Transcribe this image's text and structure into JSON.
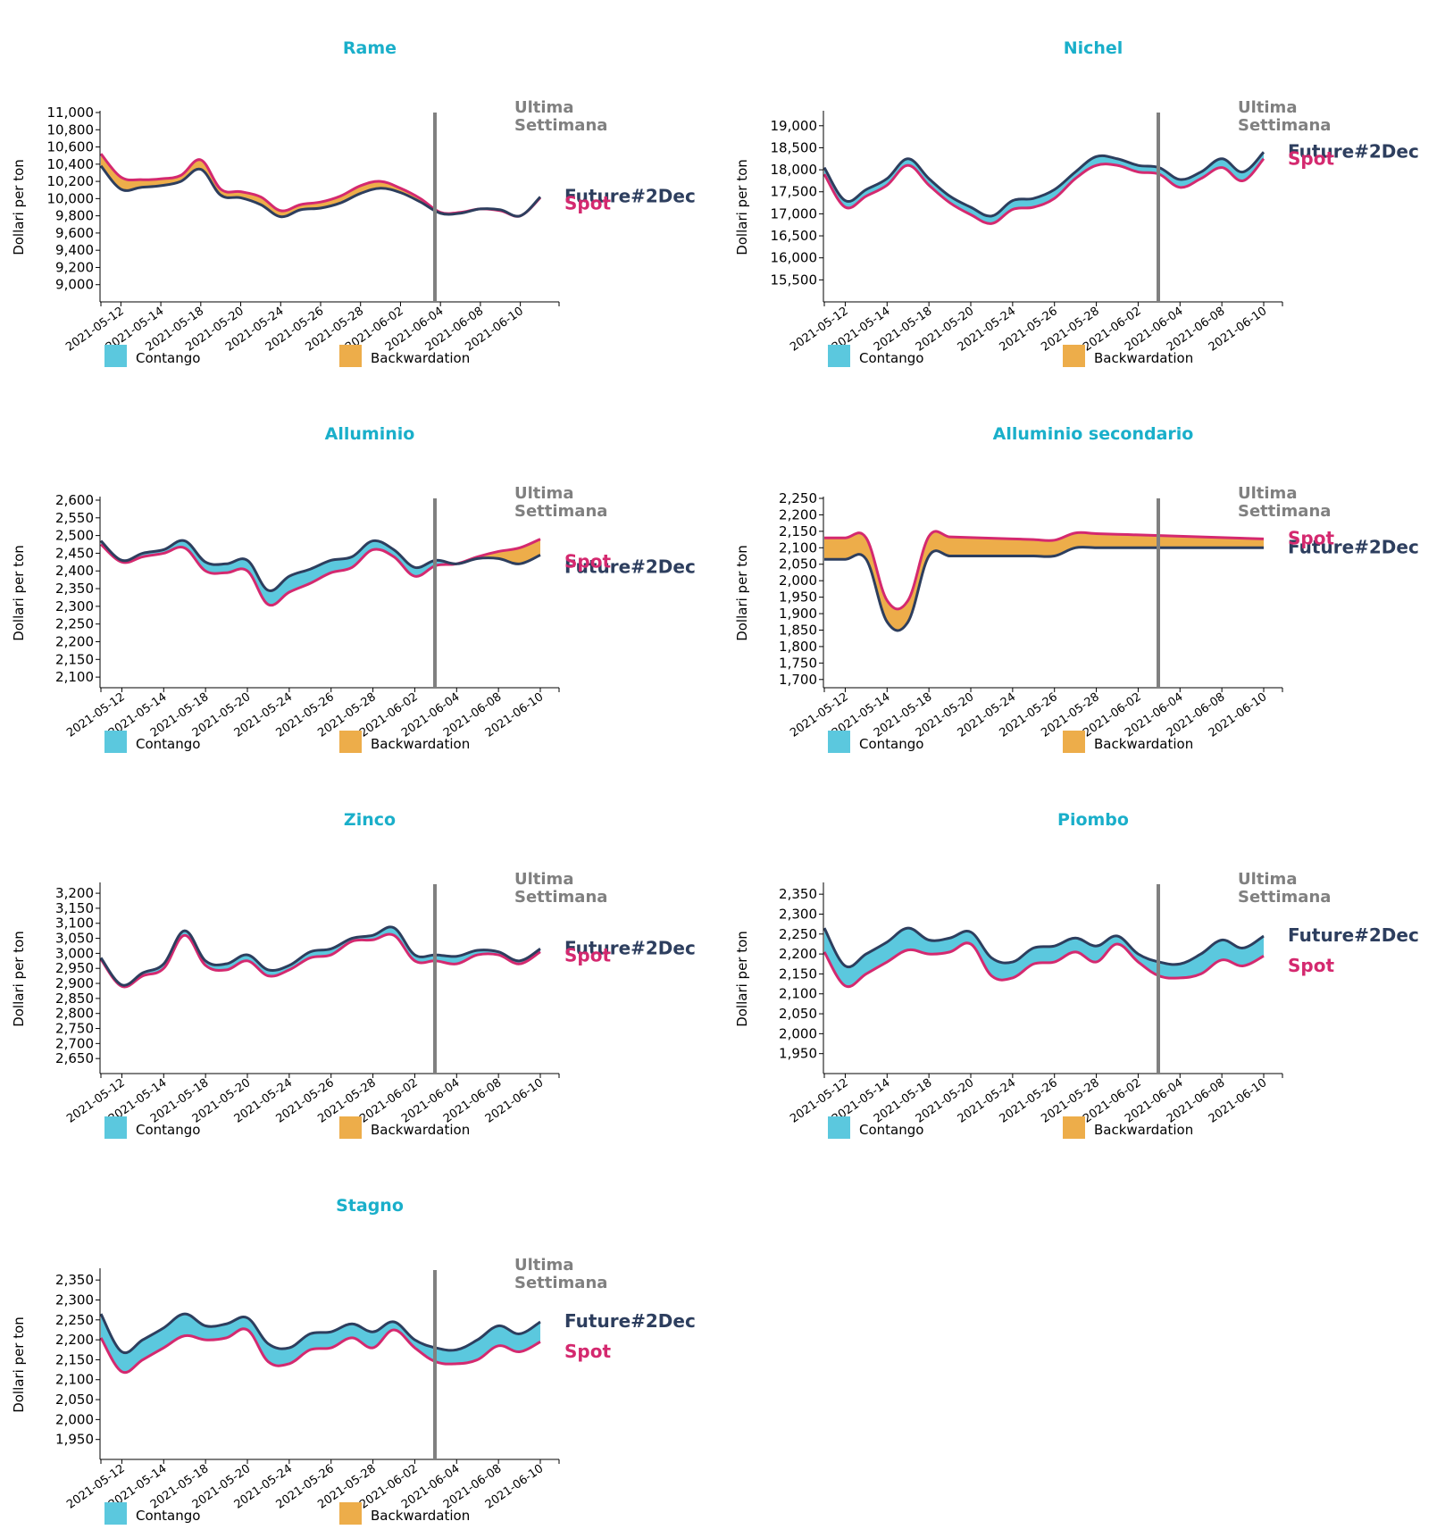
{
  "legend": {
    "contango": "Contango",
    "backwardation": "Backwardation"
  },
  "colors": {
    "title": "#1aafca",
    "future": "#2d3e5e",
    "spot": "#d4296f",
    "contango": "#5bc8de",
    "backwardation": "#edad4a",
    "week_line": "#808080",
    "week_label": "#808080",
    "axis": "#000000"
  },
  "chart_data": [
    {
      "type": "area",
      "title": "Rame",
      "ylabel": "Dollari per ton",
      "ylim": [
        8800,
        11000
      ],
      "yticks": [
        9000,
        9200,
        9400,
        9600,
        9800,
        10000,
        10200,
        10400,
        10600,
        10800,
        11000
      ],
      "x_tick_labels": [
        "2021-05-12",
        "2021-05-14",
        "2021-05-18",
        "2021-05-20",
        "2021-05-24",
        "2021-05-26",
        "2021-05-28",
        "2021-06-02",
        "2021-06-04",
        "2021-06-08",
        "2021-06-10"
      ],
      "week_marker_index": 16,
      "week_label": [
        "Ultima",
        "Settimana"
      ],
      "series": [
        {
          "name": "Future#2Dec",
          "values": [
            10380,
            10110,
            10130,
            10150,
            10200,
            10340,
            10040,
            10010,
            9930,
            9790,
            9870,
            9890,
            9950,
            10060,
            10120,
            10070,
            9960,
            9830,
            9830,
            9880,
            9870,
            9800,
            10020
          ]
        },
        {
          "name": "Spot",
          "values": [
            10520,
            10250,
            10220,
            10230,
            10270,
            10450,
            10110,
            10080,
            10020,
            9860,
            9930,
            9960,
            10030,
            10150,
            10200,
            10120,
            10000,
            9840,
            9840,
            9880,
            9860,
            9800,
            10010
          ]
        }
      ],
      "end_labels": [
        "Future#2Dec",
        "Spot"
      ]
    },
    {
      "type": "area",
      "title": "Nichel",
      "ylabel": "Dollari per ton",
      "ylim": [
        15000,
        19300
      ],
      "yticks": [
        15500,
        16000,
        16500,
        17000,
        17500,
        18000,
        18500,
        19000
      ],
      "x_tick_labels": [
        "2021-05-12",
        "2021-05-14",
        "2021-05-18",
        "2021-05-20",
        "2021-05-24",
        "2021-05-26",
        "2021-05-28",
        "2021-06-02",
        "2021-06-04",
        "2021-06-08",
        "2021-06-10"
      ],
      "week_marker_index": 16,
      "week_label": [
        "Ultima",
        "Settimana"
      ],
      "series": [
        {
          "name": "Future#2Dec",
          "values": [
            18050,
            17300,
            17550,
            17800,
            18250,
            17800,
            17400,
            17150,
            16950,
            17300,
            17350,
            17550,
            17950,
            18300,
            18250,
            18100,
            18050,
            17780,
            17950,
            18250,
            17950,
            18400
          ]
        },
        {
          "name": "Spot",
          "values": [
            17900,
            17150,
            17400,
            17650,
            18100,
            17650,
            17250,
            16980,
            16780,
            17100,
            17150,
            17350,
            17800,
            18100,
            18100,
            17950,
            17900,
            17600,
            17800,
            18050,
            17750,
            18250
          ]
        }
      ],
      "end_labels": [
        "Future#2Dec",
        "Spot"
      ]
    },
    {
      "type": "area",
      "title": "Alluminio",
      "ylabel": "Dollari per ton",
      "ylim": [
        2070,
        2605
      ],
      "yticks": [
        2100,
        2150,
        2200,
        2250,
        2300,
        2350,
        2400,
        2450,
        2500,
        2550,
        2600
      ],
      "x_tick_labels": [
        "2021-05-12",
        "2021-05-14",
        "2021-05-18",
        "2021-05-20",
        "2021-05-24",
        "2021-05-26",
        "2021-05-28",
        "2021-06-02",
        "2021-06-04",
        "2021-06-08",
        "2021-06-10"
      ],
      "week_marker_index": 16,
      "week_label": [
        "Ultima",
        "Settimana"
      ],
      "series": [
        {
          "name": "Future#2Dec",
          "values": [
            2485,
            2430,
            2450,
            2460,
            2485,
            2425,
            2420,
            2430,
            2345,
            2385,
            2405,
            2430,
            2440,
            2485,
            2460,
            2410,
            2430,
            2420,
            2435,
            2435,
            2420,
            2445
          ]
        },
        {
          "name": "Spot",
          "values": [
            2475,
            2425,
            2440,
            2450,
            2465,
            2400,
            2395,
            2400,
            2305,
            2340,
            2365,
            2395,
            2410,
            2460,
            2440,
            2385,
            2415,
            2420,
            2440,
            2455,
            2465,
            2490
          ]
        }
      ],
      "end_labels": [
        "Spot",
        "Future#2Dec"
      ]
    },
    {
      "type": "area",
      "title": "Alluminio secondario",
      "ylabel": "Dollari per ton",
      "ylim": [
        1675,
        2250
      ],
      "yticks": [
        1700,
        1750,
        1800,
        1850,
        1900,
        1950,
        2000,
        2050,
        2100,
        2150,
        2200,
        2250
      ],
      "x_tick_labels": [
        "2021-05-12",
        "2021-05-14",
        "2021-05-18",
        "2021-05-20",
        "2021-05-24",
        "2021-05-26",
        "2021-05-28",
        "2021-06-02",
        "2021-06-04",
        "2021-06-08",
        "2021-06-10"
      ],
      "week_marker_index": 16,
      "week_label": [
        "Ultima",
        "Settimana"
      ],
      "series": [
        {
          "name": "Future#2Dec",
          "values": [
            2065,
            2065,
            2065,
            1875,
            1875,
            2075,
            2075,
            2075,
            2075,
            2075,
            2075,
            2075,
            2100,
            2100,
            2100,
            2100,
            2100,
            2100,
            2100,
            2100,
            2100,
            2100
          ]
        },
        {
          "name": "Spot",
          "values": [
            2130,
            2130,
            2130,
            1940,
            1940,
            2135,
            2133,
            2131,
            2129,
            2127,
            2125,
            2123,
            2145,
            2143,
            2141,
            2139,
            2137,
            2135,
            2133,
            2131,
            2129,
            2127
          ]
        }
      ],
      "end_labels": [
        "Future#2Dec",
        "Spot"
      ]
    },
    {
      "type": "area",
      "title": "Zinco",
      "ylabel": "Dollari per ton",
      "ylim": [
        2600,
        3230
      ],
      "yticks": [
        2650,
        2700,
        2750,
        2800,
        2850,
        2900,
        2950,
        3000,
        3050,
        3100,
        3150,
        3200
      ],
      "x_tick_labels": [
        "2021-05-12",
        "2021-05-14",
        "2021-05-18",
        "2021-05-20",
        "2021-05-24",
        "2021-05-26",
        "2021-05-28",
        "2021-06-02",
        "2021-06-04",
        "2021-06-08",
        "2021-06-10"
      ],
      "week_marker_index": 16,
      "week_label": [
        "Ultima",
        "Settimana"
      ],
      "series": [
        {
          "name": "Future#2Dec",
          "values": [
            2985,
            2895,
            2935,
            2965,
            3075,
            2975,
            2965,
            2995,
            2945,
            2960,
            3005,
            3015,
            3050,
            3060,
            3085,
            2995,
            2995,
            2990,
            3010,
            3005,
            2975,
            3015
          ]
        },
        {
          "name": "Spot",
          "values": [
            2980,
            2890,
            2925,
            2950,
            3060,
            2960,
            2945,
            2975,
            2925,
            2945,
            2985,
            2995,
            3040,
            3045,
            3060,
            2975,
            2975,
            2965,
            2995,
            2995,
            2965,
            3005
          ]
        }
      ],
      "end_labels": [
        "Future#2Dec",
        "Spot"
      ]
    },
    {
      "type": "area",
      "title": "Piombo",
      "ylabel": "Dollari per ton",
      "ylim": [
        1900,
        2375
      ],
      "yticks": [
        1950,
        2000,
        2050,
        2100,
        2150,
        2200,
        2250,
        2300,
        2350
      ],
      "x_tick_labels": [
        "2021-05-12",
        "2021-05-14",
        "2021-05-18",
        "2021-05-20",
        "2021-05-24",
        "2021-05-26",
        "2021-05-28",
        "2021-06-02",
        "2021-06-04",
        "2021-06-08",
        "2021-06-10"
      ],
      "week_marker_index": 16,
      "week_label": [
        "Ultima",
        "Settimana"
      ],
      "series": [
        {
          "name": "Future#2Dec",
          "values": [
            2265,
            2170,
            2200,
            2230,
            2265,
            2235,
            2240,
            2255,
            2190,
            2180,
            2215,
            2220,
            2240,
            2220,
            2245,
            2200,
            2180,
            2175,
            2200,
            2235,
            2215,
            2245
          ]
        },
        {
          "name": "Spot",
          "values": [
            2205,
            2120,
            2150,
            2180,
            2210,
            2200,
            2205,
            2225,
            2145,
            2140,
            2175,
            2180,
            2205,
            2180,
            2225,
            2180,
            2145,
            2140,
            2150,
            2185,
            2170,
            2195
          ]
        }
      ],
      "end_labels": [
        "Future#2Dec",
        "Spot"
      ]
    },
    {
      "type": "area",
      "title": "Stagno",
      "ylabel": "Dollari per ton",
      "ylim": [
        1900,
        2375
      ],
      "yticks": [
        1950,
        2000,
        2050,
        2100,
        2150,
        2200,
        2250,
        2300,
        2350
      ],
      "x_tick_labels": [
        "2021-05-12",
        "2021-05-14",
        "2021-05-18",
        "2021-05-20",
        "2021-05-24",
        "2021-05-26",
        "2021-05-28",
        "2021-06-02",
        "2021-06-04",
        "2021-06-08",
        "2021-06-10"
      ],
      "week_marker_index": 16,
      "week_label": [
        "Ultima",
        "Settimana"
      ],
      "series": [
        {
          "name": "Future#2Dec",
          "values": [
            2265,
            2170,
            2200,
            2230,
            2265,
            2235,
            2240,
            2255,
            2190,
            2180,
            2215,
            2220,
            2240,
            2220,
            2245,
            2200,
            2180,
            2175,
            2200,
            2235,
            2215,
            2245
          ]
        },
        {
          "name": "Spot",
          "values": [
            2205,
            2120,
            2150,
            2180,
            2210,
            2200,
            2205,
            2225,
            2145,
            2140,
            2175,
            2180,
            2205,
            2180,
            2225,
            2180,
            2145,
            2140,
            2150,
            2185,
            2170,
            2195
          ]
        }
      ],
      "end_labels": [
        "Future#2Dec",
        "Spot"
      ]
    }
  ]
}
